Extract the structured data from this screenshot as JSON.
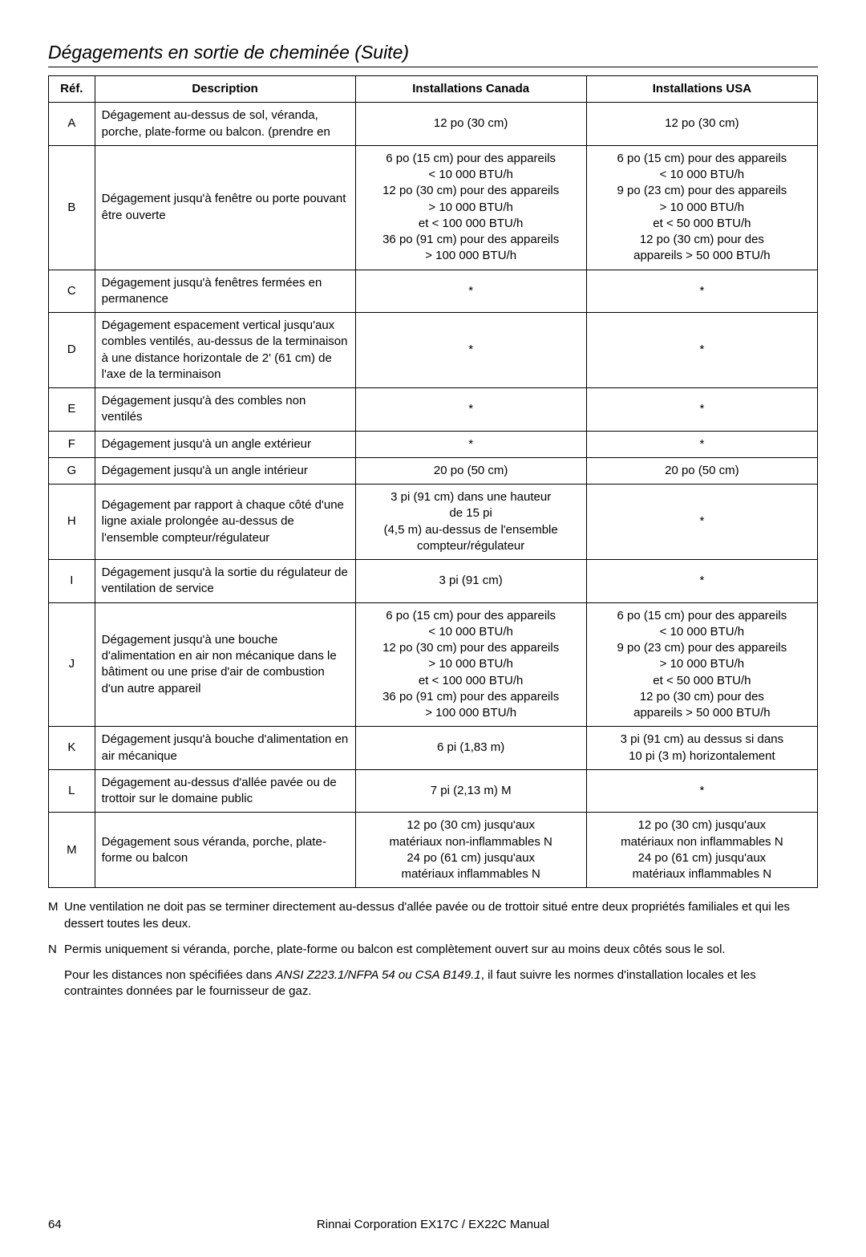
{
  "title": "Dégagements en sortie de cheminée (Suite)",
  "headers": {
    "ref": "Réf.",
    "desc": "Description",
    "canada": "Installations Canada",
    "usa": "Installations USA"
  },
  "rows": [
    {
      "ref": "A",
      "desc": "Dégagement au-dessus de sol, véranda, porche, plate-forme ou balcon. (prendre en",
      "canada": "12 po (30 cm)",
      "usa": "12 po (30 cm)"
    },
    {
      "ref": "B",
      "desc": "Dégagement jusqu'à fenêtre ou porte pouvant être ouverte",
      "canada": "6 po (15 cm) pour des appareils\n< 10 000 BTU/h\n12 po (30 cm) pour des appareils\n> 10 000 BTU/h\net < 100 000 BTU/h\n36 po (91 cm) pour des appareils\n> 100 000 BTU/h",
      "usa": "6 po (15 cm) pour des appareils\n< 10 000 BTU/h\n9 po (23 cm) pour des appareils\n> 10 000 BTU/h\net < 50 000 BTU/h\n12 po (30 cm) pour des\nappareils > 50 000 BTU/h"
    },
    {
      "ref": "C",
      "desc": "Dégagement  jusqu'à fenêtres fermées en permanence",
      "canada": "*",
      "usa": "*"
    },
    {
      "ref": "D",
      "desc": "Dégagement  espacement vertical jusqu'aux combles ventilés, au-dessus de la terminaison à une distance horizontale de 2' (61 cm) de l'axe de la terminaison",
      "canada": "*",
      "usa": "*"
    },
    {
      "ref": "E",
      "desc": "Dégagement  jusqu'à des combles non ventilés",
      "canada": "*",
      "usa": "*"
    },
    {
      "ref": "F",
      "desc": "Dégagement  jusqu'à un angle extérieur",
      "canada": "*",
      "usa": "*"
    },
    {
      "ref": "G",
      "desc": "Dégagement  jusqu'à un angle intérieur",
      "canada": "20 po (50 cm)",
      "usa": "20 po (50 cm)"
    },
    {
      "ref": "H",
      "desc": "Dégagement  par rapport à chaque côté d'une ligne axiale prolongée au-dessus de l'ensemble compteur/régulateur",
      "canada": "3 pi (91 cm) dans une hauteur\nde 15 pi\n(4,5 m) au-dessus de l'ensemble\ncompteur/régulateur",
      "usa": "*"
    },
    {
      "ref": "I",
      "desc": "Dégagement  jusqu'à la sortie du régulateur de ventilation de service",
      "canada": "3 pi  (91 cm)",
      "usa": "*"
    },
    {
      "ref": "J",
      "desc": "Dégagement  jusqu'à une bouche d'alimentation en air non mécanique dans le bâtiment ou une prise d'air de combustion d'un autre appareil",
      "canada": "6 po (15 cm) pour des appareils\n< 10 000 BTU/h\n12 po (30 cm) pour des appareils\n> 10 000 BTU/h\net < 100 000 BTU/h\n36 po (91 cm) pour des appareils\n> 100 000 BTU/h",
      "usa": "6 po (15 cm) pour des appareils\n< 10 000 BTU/h\n9 po (23 cm) pour des appareils\n> 10 000 BTU/h\net < 50 000 BTU/h\n12 po (30 cm) pour des\nappareils > 50 000 BTU/h"
    },
    {
      "ref": "K",
      "desc": "Dégagement  jusqu'à bouche d'alimentation en air mécanique",
      "canada": "6 pi  (1,83 m)",
      "usa": "3 pi (91 cm) au dessus si dans\n10 pi (3 m) horizontalement"
    },
    {
      "ref": "L",
      "desc": "Dégagement  au-dessus d'allée pavée ou de trottoir sur le domaine public",
      "canada": "7 pi (2,13 m)  M",
      "usa": "*"
    },
    {
      "ref": "M",
      "desc": "Dégagement  sous véranda, porche, plate-forme ou balcon",
      "canada": "12 po (30 cm) jusqu'aux\nmatériaux  non-inflammables  N\n24 po (61 cm) jusqu'aux\nmatériaux  inflammables  N",
      "usa": "12 po (30 cm) jusqu'aux\nmatériaux non inflammables  N\n24 po (61 cm) jusqu'aux\nmatériaux  inflammables  N"
    }
  ],
  "notes": {
    "m": {
      "label": "M",
      "text": "Une ventilation ne doit pas se terminer directement au-dessus d'allée pavée ou de trottoir situé entre deux propriétés familiales et qui les dessert toutes les deux."
    },
    "n": {
      "label": "N",
      "text": "Permis uniquement si véranda, porche, plate-forme ou balcon est complètement ouvert sur au moins deux côtés sous le sol."
    },
    "final_pre": "Pour les distances non spécifiées dans ",
    "final_spec": "ANSI Z223.1/NFPA 54 ou CSA B149.1",
    "final_post": ", il faut suivre les normes d'installation locales et les contraintes données par le fournisseur de gaz."
  },
  "footer": {
    "page": "64",
    "manual": "Rinnai Corporation EX17C / EX22C Manual"
  }
}
